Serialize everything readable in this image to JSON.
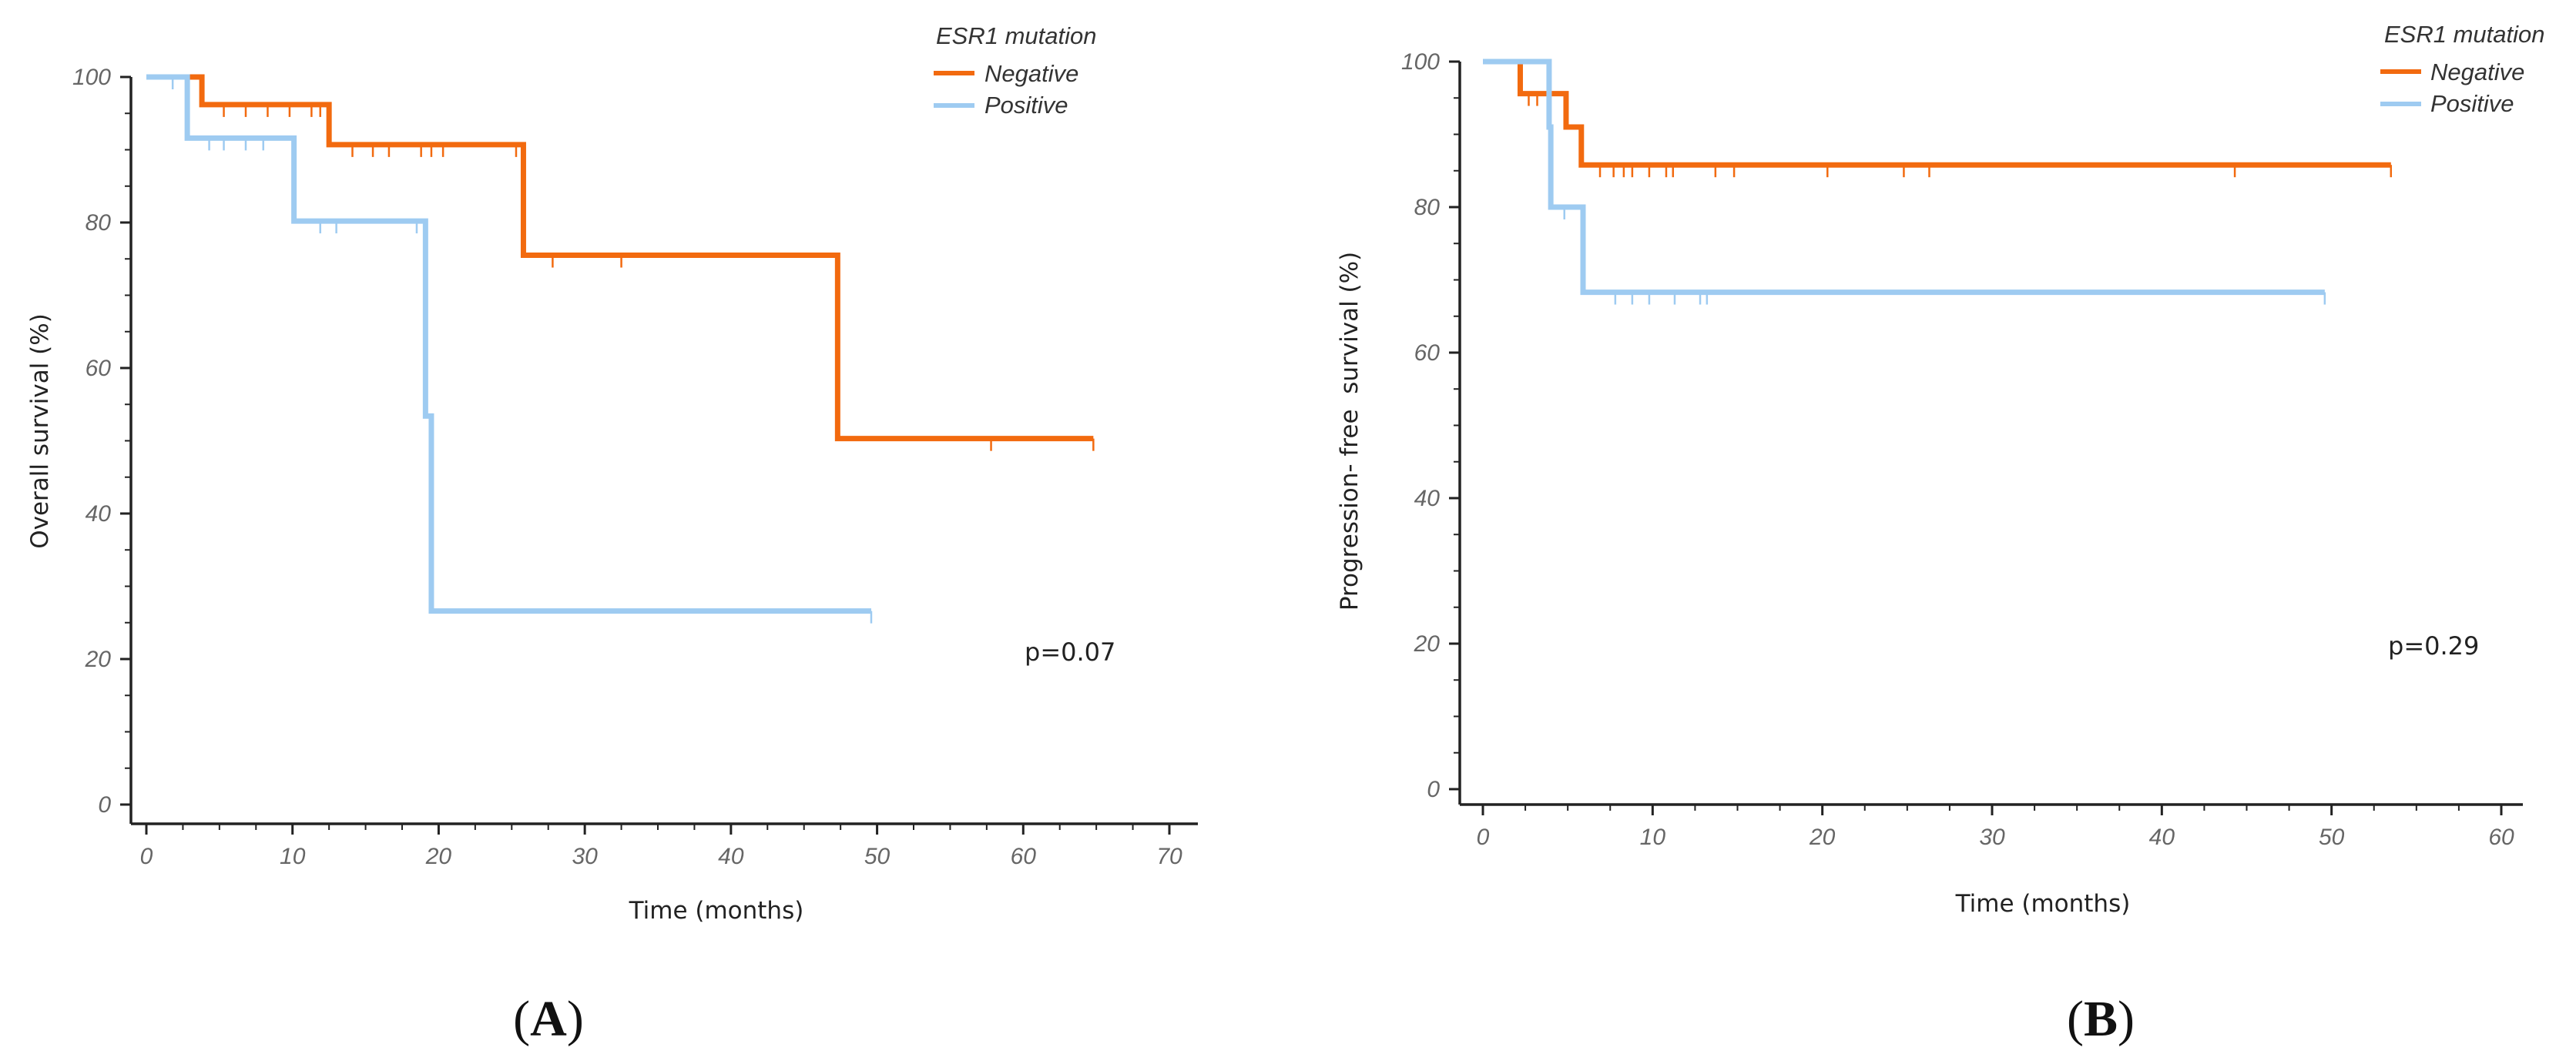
{
  "colors": {
    "negative": "#f26a0f",
    "positive": "#9ecbf1"
  },
  "chart_data": [
    {
      "type": "line",
      "subtype": "kaplan-meier",
      "panel_label": "A",
      "xlabel": "Time (months)",
      "ylabel": "Overall survival (%)",
      "xlim": [
        0,
        70
      ],
      "ylim": [
        0,
        100
      ],
      "xticks": [
        0,
        10,
        20,
        30,
        40,
        50,
        60,
        70
      ],
      "yticks": [
        0,
        20,
        40,
        60,
        80,
        100
      ],
      "legend_title": "ESR1 mutation",
      "p_value": "p=0.07",
      "series": [
        {
          "name": "Negative",
          "color_key": "negative",
          "x": [
            0,
            3.8,
            12.5,
            25.8,
            47.3,
            64.8
          ],
          "y": [
            100,
            96.2,
            90.7,
            75.5,
            50.3,
            50.3
          ],
          "censored_x": [
            2.8,
            5.3,
            6.8,
            8.3,
            9.8,
            11.3,
            11.9,
            14.1,
            15.5,
            16.6,
            18.8,
            19.5,
            20.3,
            25.3,
            27.8,
            32.5,
            57.8,
            64.8
          ]
        },
        {
          "name": "Positive",
          "color_key": "positive",
          "x": [
            0,
            2.8,
            10.1,
            19.1,
            19.5,
            49.6
          ],
          "y": [
            100,
            91.6,
            80.2,
            53.4,
            26.6,
            26.6
          ],
          "censored_x": [
            1.8,
            4.3,
            5.3,
            6.8,
            8.0,
            11.9,
            13.0,
            18.5,
            49.6
          ]
        }
      ]
    },
    {
      "type": "line",
      "subtype": "kaplan-meier",
      "panel_label": "B",
      "xlabel": "Time (months)",
      "ylabel": "Progression- free  survival (%)",
      "xlim": [
        0,
        60
      ],
      "ylim": [
        0,
        100
      ],
      "xticks": [
        0,
        10,
        20,
        30,
        40,
        50,
        60
      ],
      "yticks": [
        0,
        20,
        40,
        60,
        80,
        100
      ],
      "legend_title": "ESR1 mutation",
      "p_value": "p=0.29",
      "series": [
        {
          "name": "Negative",
          "color_key": "negative",
          "x": [
            0,
            2.2,
            4.9,
            5.8,
            53.5
          ],
          "y": [
            100,
            95.6,
            91.0,
            85.8,
            85.8
          ],
          "censored_x": [
            2.7,
            3.2,
            6.9,
            7.7,
            8.3,
            8.8,
            9.8,
            10.8,
            11.2,
            13.7,
            14.8,
            20.3,
            24.8,
            26.3,
            44.3,
            53.5
          ]
        },
        {
          "name": "Positive",
          "color_key": "positive",
          "x": [
            0,
            3.9,
            4.0,
            5.9,
            49.6
          ],
          "y": [
            100,
            91.0,
            80.0,
            68.3,
            68.3
          ],
          "censored_x": [
            4.8,
            7.8,
            8.8,
            9.8,
            11.3,
            12.8,
            13.2,
            49.6
          ]
        }
      ]
    }
  ]
}
